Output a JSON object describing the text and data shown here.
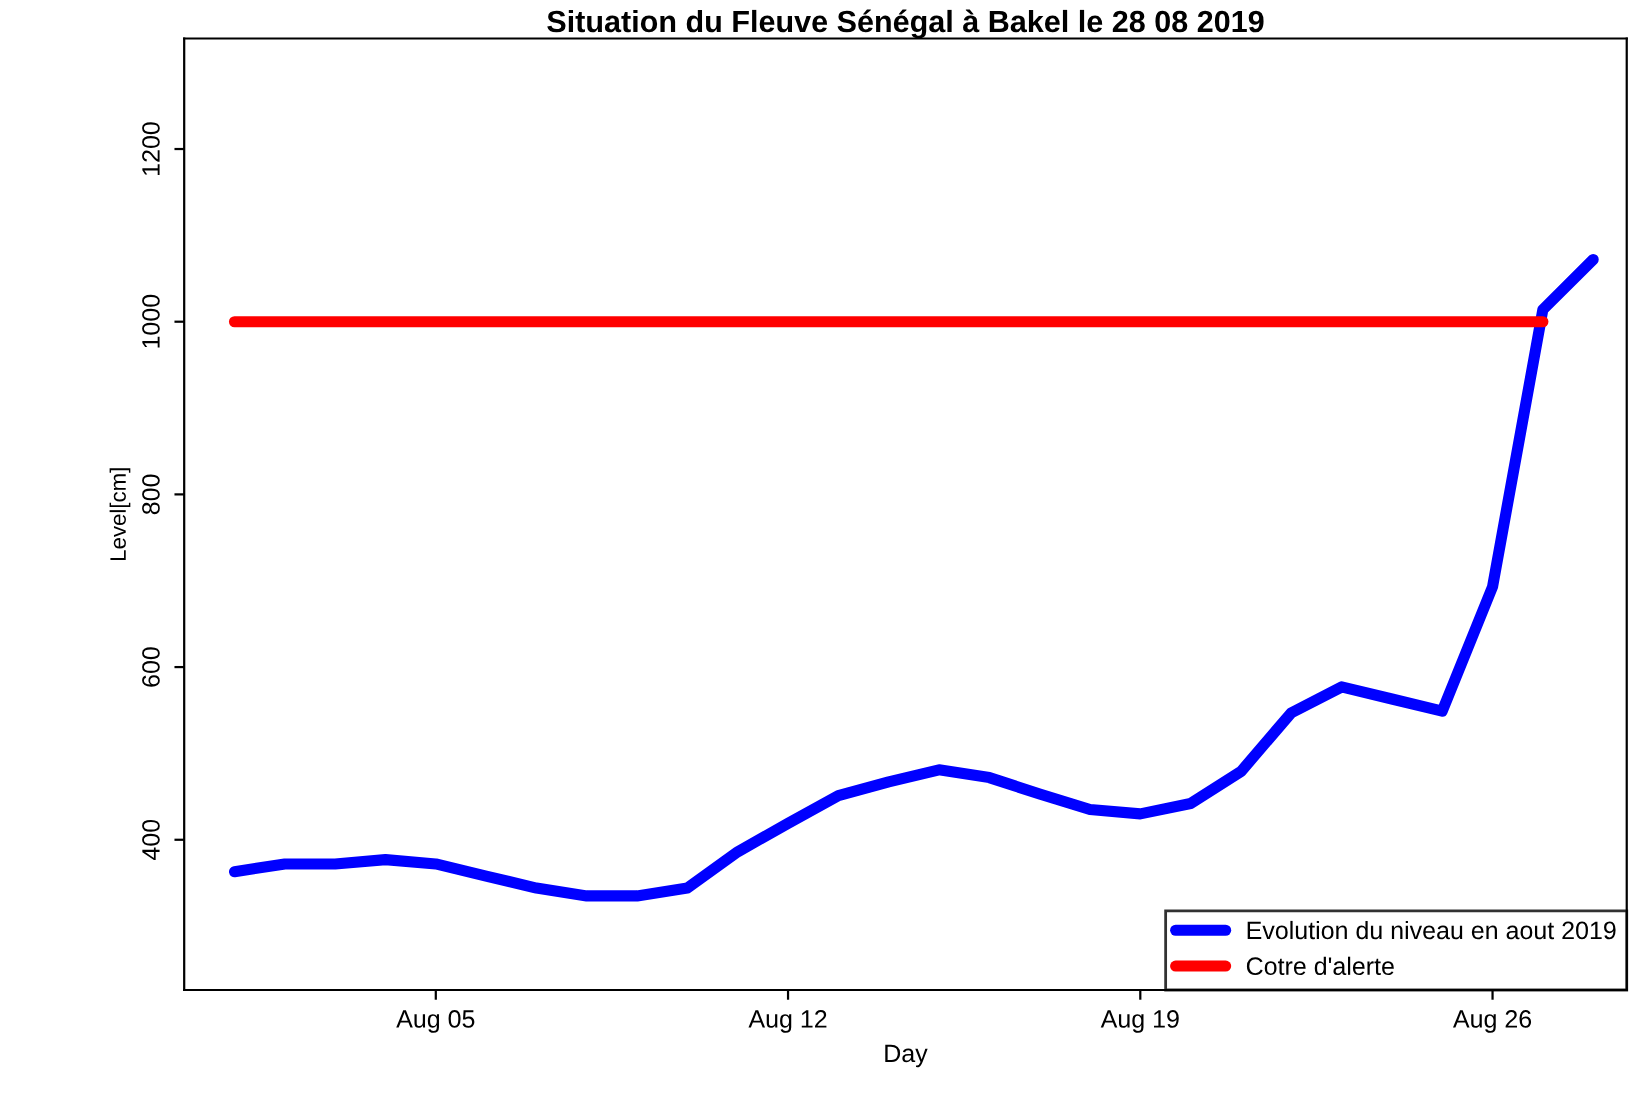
{
  "chart_data": {
    "type": "line",
    "title": "Situation du Fleuve Sénégal à Bakel le 28 08 2019",
    "xlabel": "Day",
    "ylabel": "Level[cm]",
    "xlim": [
      "2019-07-31",
      "2019-08-28T16:00"
    ],
    "ylim": [
      226,
      1328
    ],
    "xticks": [
      {
        "value": "2019-08-05",
        "label": "Aug 05"
      },
      {
        "value": "2019-08-12",
        "label": "Aug 12"
      },
      {
        "value": "2019-08-19",
        "label": "Aug 19"
      },
      {
        "value": "2019-08-26",
        "label": "Aug 26"
      }
    ],
    "yticks": [
      400,
      600,
      800,
      1000,
      1200
    ],
    "grid": false,
    "legend": "bottom right",
    "marker": "none",
    "line_style": "solid",
    "series": [
      {
        "name": "Evolution du niveau en aout 2019",
        "color": "#0000ff",
        "x": [
          "2019-08-01",
          "2019-08-02",
          "2019-08-03",
          "2019-08-04",
          "2019-08-05",
          "2019-08-06",
          "2019-08-07",
          "2019-08-08",
          "2019-08-09",
          "2019-08-10",
          "2019-08-11",
          "2019-08-12",
          "2019-08-13",
          "2019-08-14",
          "2019-08-15",
          "2019-08-16",
          "2019-08-17",
          "2019-08-18",
          "2019-08-19",
          "2019-08-20",
          "2019-08-21",
          "2019-08-22",
          "2019-08-23",
          "2019-08-24",
          "2019-08-25",
          "2019-08-26",
          "2019-08-27",
          "2019-08-28"
        ],
        "values": [
          363,
          372,
          372,
          377,
          372,
          358,
          344,
          335,
          335,
          344,
          386,
          419,
          451,
          467,
          481,
          472,
          453,
          435,
          430,
          442,
          479,
          547,
          577,
          563,
          549,
          693,
          1014,
          1072
        ]
      },
      {
        "name": "Cotre d'alerte",
        "color": "#ff0000",
        "type": "line",
        "x": [
          "2019-08-01",
          "2019-08-27"
        ],
        "values": [
          1000,
          1000
        ]
      }
    ]
  }
}
